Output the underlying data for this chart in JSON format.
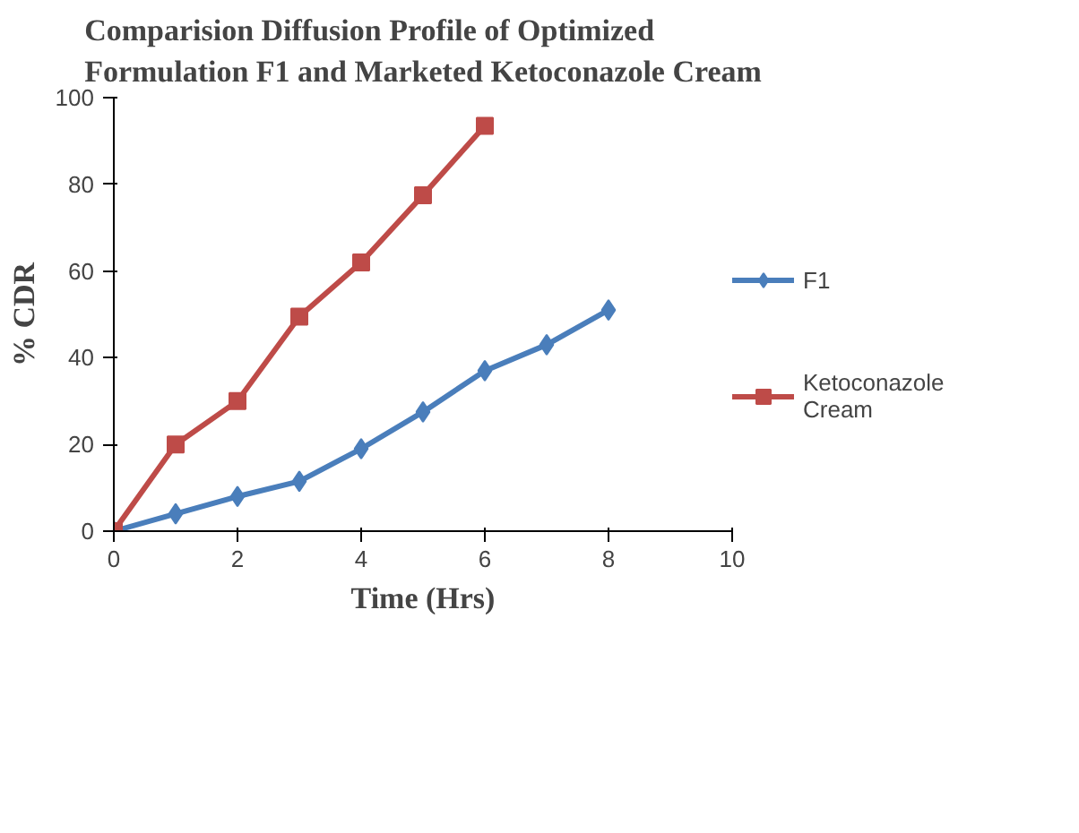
{
  "chart_data": {
    "type": "line",
    "title": "Comparision Diffusion Profile of Optimized\nFormulation F1 and Marketed Ketoconazole Cream",
    "xlabel": "Time (Hrs)",
    "ylabel": "% CDR",
    "xlim": [
      0,
      10
    ],
    "xticks": [
      0,
      2,
      4,
      6,
      8,
      10
    ],
    "ylim": [
      0,
      100
    ],
    "yticks": [
      0,
      20,
      40,
      60,
      80,
      100
    ],
    "grid": false,
    "legend": "right",
    "series": [
      {
        "name": "F1",
        "color": "#4a7ebb",
        "marker": "diamond",
        "x": [
          0,
          1,
          2,
          3,
          4,
          5,
          6,
          7,
          8
        ],
        "values": [
          0,
          4,
          8,
          11.5,
          19,
          27.5,
          37,
          43,
          51
        ]
      },
      {
        "name": "Ketoconazole\nCream",
        "color": "#be4b48",
        "marker": "square",
        "x": [
          0,
          1,
          2,
          3,
          4,
          5,
          6
        ],
        "values": [
          0,
          20,
          30,
          49.5,
          62,
          77.5,
          93.5
        ]
      }
    ]
  }
}
